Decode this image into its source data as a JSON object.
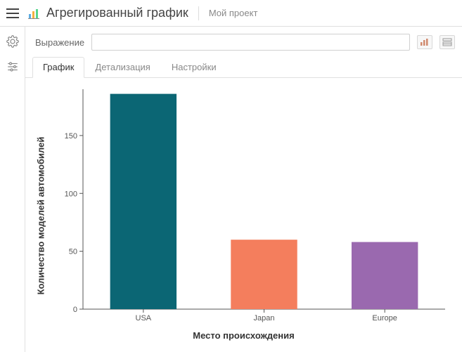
{
  "header": {
    "page_title": "Агрегированный график",
    "project_name": "Мой проект"
  },
  "expression": {
    "label": "Выражение",
    "value": "",
    "placeholder": ""
  },
  "tabs": [
    {
      "label": "График",
      "active": true
    },
    {
      "label": "Детализация",
      "active": false
    },
    {
      "label": "Настройки",
      "active": false
    }
  ],
  "chart": {
    "type": "bar",
    "ylabel": "Количество моделей автомобилей",
    "xlabel": "Место происхождения",
    "categories": [
      "USA",
      "Japan",
      "Europe"
    ],
    "values": [
      186,
      60,
      58
    ],
    "bar_colors": [
      "#0b6674",
      "#f47e5d",
      "#9a69af"
    ],
    "ylim": [
      0,
      190
    ],
    "yticks": [
      0,
      50,
      100,
      150
    ],
    "background_color": "#ffffff",
    "axis_color": "#555555",
    "tick_fontsize": 11,
    "label_fontsize": 13,
    "label_fontweight": 700,
    "bar_width_ratio": 0.55
  }
}
